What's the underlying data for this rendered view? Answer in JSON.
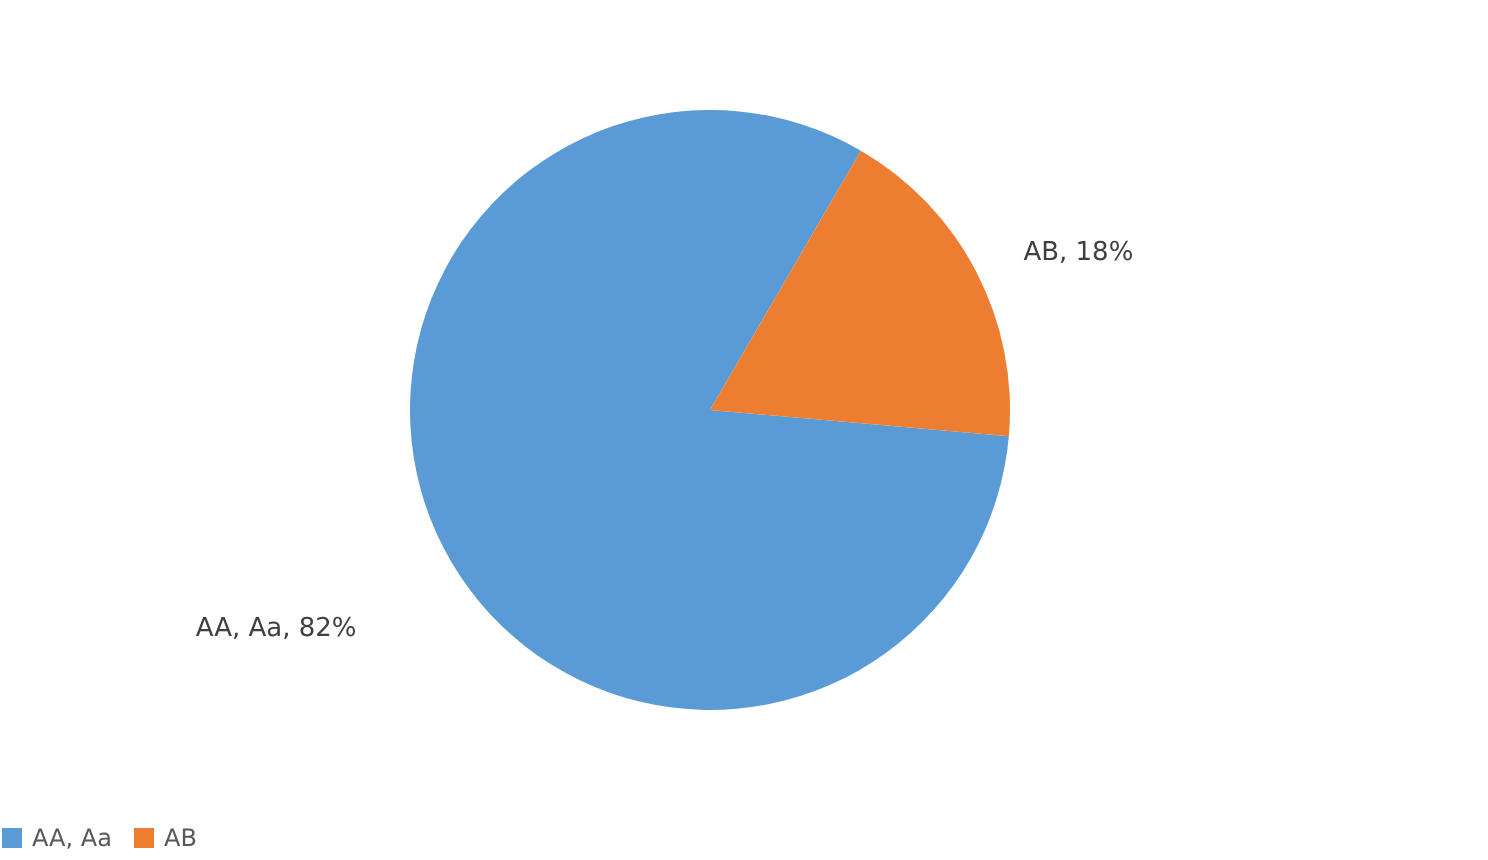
{
  "chart_data": {
    "type": "pie",
    "categories": [
      "AA, Aa",
      "AB"
    ],
    "values": [
      82,
      18
    ],
    "colors": [
      "#5b9bd5",
      "#ed7d31"
    ],
    "value_labels": [
      "AA, Aa,  82%",
      "AB, 18%"
    ],
    "legend": "bottom"
  }
}
